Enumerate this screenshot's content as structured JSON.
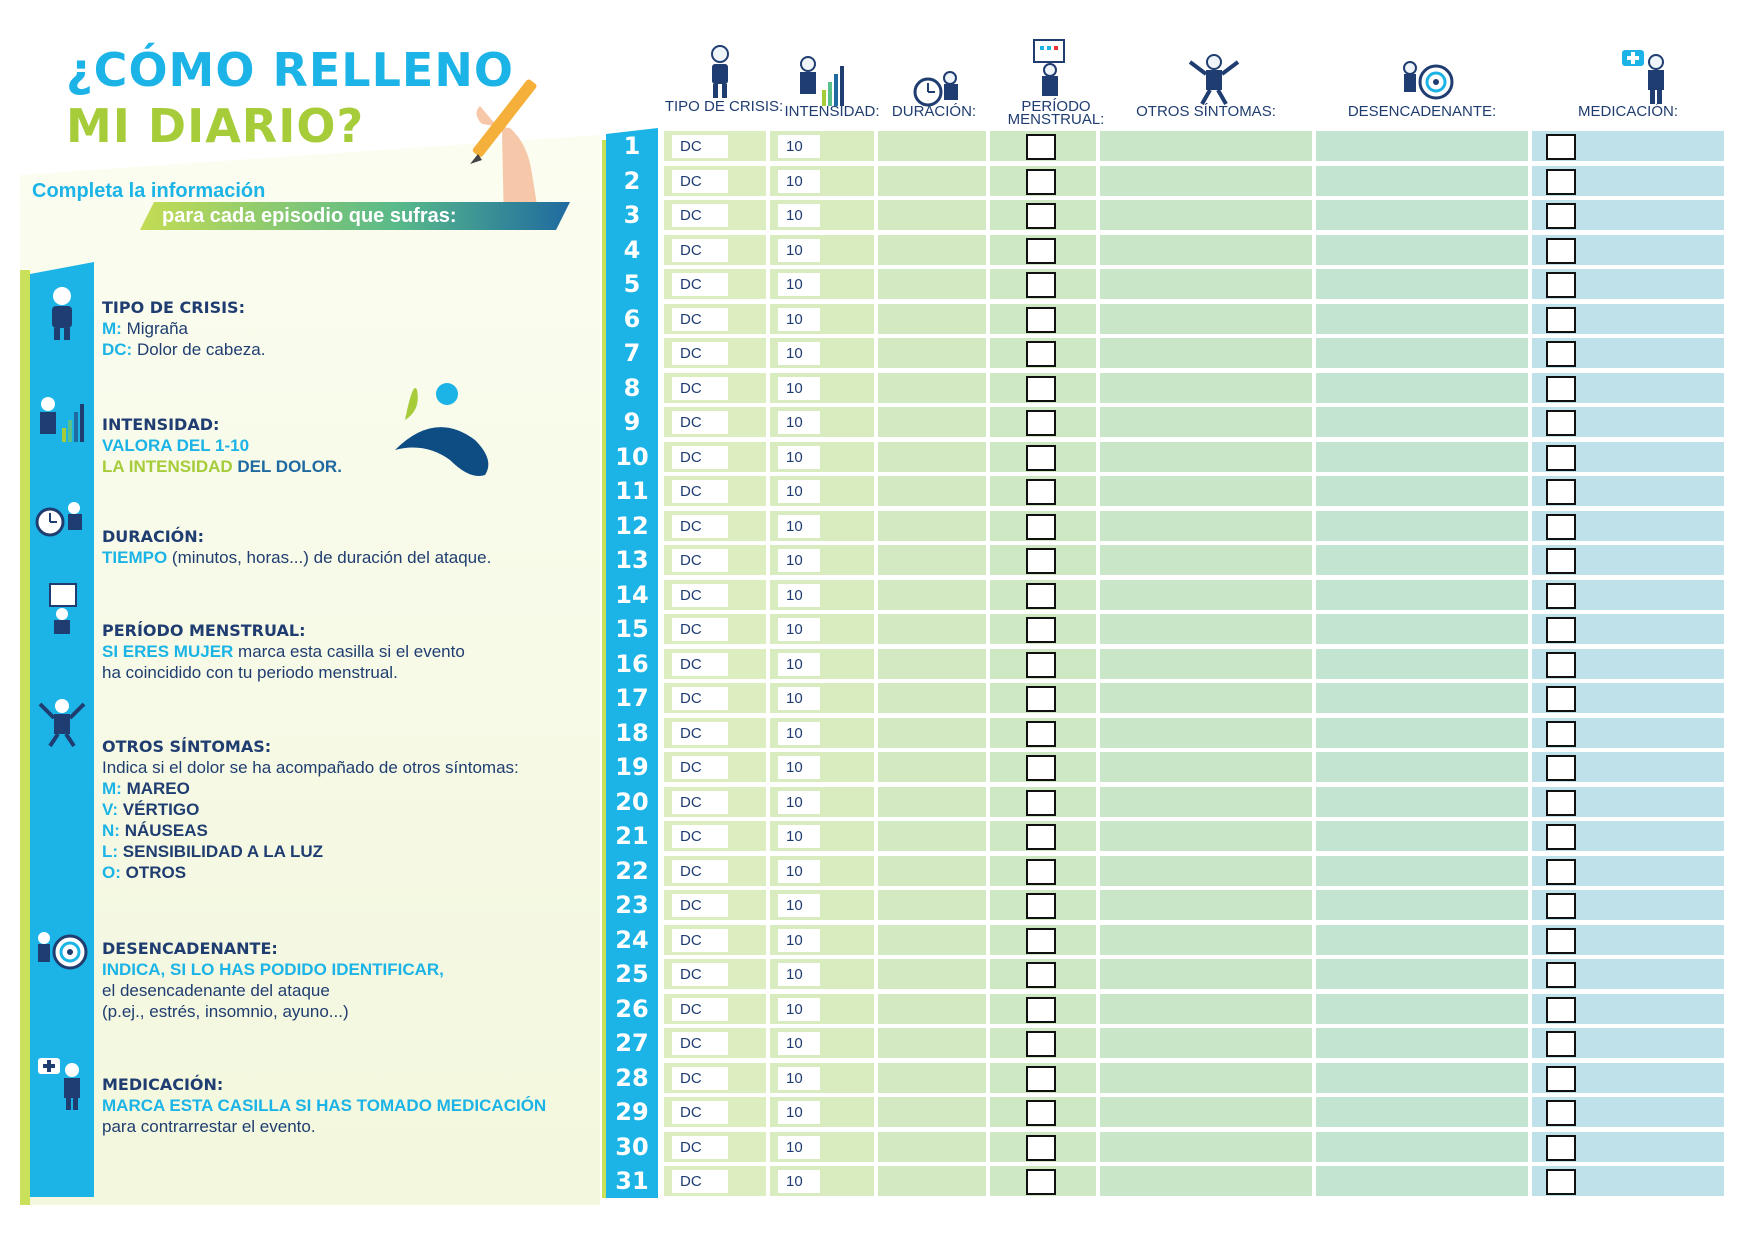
{
  "title": {
    "line1": "¿CÓMO RELLENO",
    "line2": "MI DIARIO?"
  },
  "subtitle": {
    "line1": "Completa la información",
    "line2": "para cada episodio que sufras:"
  },
  "legend": {
    "tipo": {
      "heading": "TIPO DE CRISIS:",
      "m_key": "M:",
      "m_text": "Migraña",
      "dc_key": "DC:",
      "dc_text": "Dolor de cabeza."
    },
    "intensidad": {
      "heading": "INTENSIDAD:",
      "line1": "VALORA DEL 1-10",
      "line2a": "LA INTENSIDAD",
      "line2b": "DEL DOLOR."
    },
    "duracion": {
      "heading": "DURACIÓN:",
      "key": "TIEMPO",
      "text": "(minutos, horas...) de duración del ataque."
    },
    "menstrual": {
      "heading": "PERÍODO MENSTRUAL:",
      "key": "SI ERES MUJER",
      "text1": "marca esta casilla si el evento",
      "text2": "ha coincidido con tu periodo menstrual."
    },
    "otros": {
      "heading": "OTROS SÍNTOMAS:",
      "intro": "Indica si el dolor se ha acompañado de otros síntomas:",
      "items": [
        {
          "key": "M:",
          "label": "MAREO"
        },
        {
          "key": "V:",
          "label": "VÉRTIGO"
        },
        {
          "key": "N:",
          "label": "NÁUSEAS"
        },
        {
          "key": "L:",
          "label": "SENSIBILIDAD A LA LUZ"
        },
        {
          "key": "O:",
          "label": "OTROS"
        }
      ]
    },
    "desencadenante": {
      "heading": "DESENCADENANTE:",
      "key": "INDICA, SI LO HAS PODIDO IDENTIFICAR,",
      "text1": "el desencadenante del ataque",
      "text2": "(p.ej., estrés, insomnio, ayuno...)"
    },
    "medicacion": {
      "heading": "MEDICACIÓN:",
      "key": "MARCA ESTA CASILLA SI HAS TOMADO MEDICACIÓN",
      "text": "para contrarrestar el evento."
    }
  },
  "columns": {
    "tipo": "TIPO DE CRISIS:",
    "intensidad": "INTENSIDAD:",
    "duracion": "DURACIÓN:",
    "menstrual": "PERÍODO MENSTRUAL:",
    "otros": "OTROS SÍNTOMAS:",
    "desencadenante": "DESENCADENANTE:",
    "medicacion": "MEDICACIÓN:"
  },
  "row_defaults": {
    "tipo": "DC",
    "intensidad": "10"
  },
  "days": [
    "1",
    "2",
    "3",
    "4",
    "5",
    "6",
    "7",
    "8",
    "9",
    "10",
    "11",
    "12",
    "13",
    "14",
    "15",
    "16",
    "17",
    "18",
    "19",
    "20",
    "21",
    "22",
    "23",
    "24",
    "25",
    "26",
    "27",
    "28",
    "29",
    "30",
    "31"
  ],
  "colors": {
    "accent_blue": "#1cb4e6",
    "accent_green": "#a6cc3a",
    "navy": "#1f3d70"
  }
}
